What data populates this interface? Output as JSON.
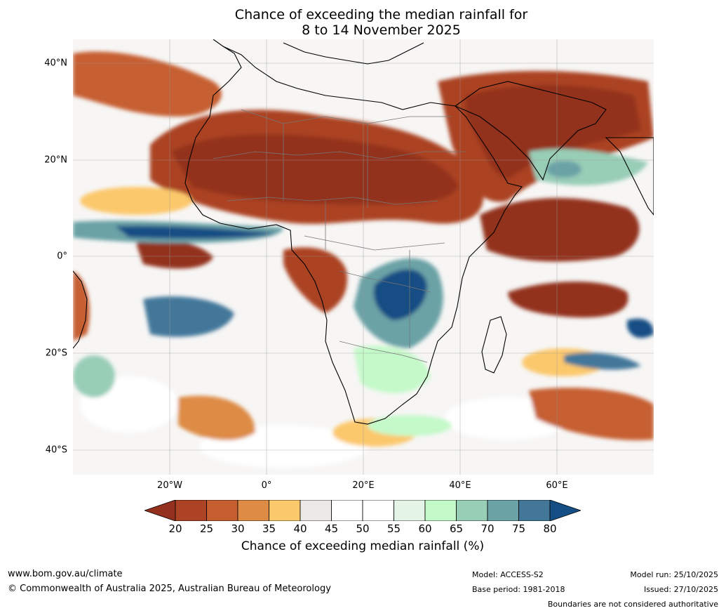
{
  "title": {
    "line1": "Chance of exceeding the median rainfall for",
    "line2": "8 to 14 November 2025"
  },
  "lat_labels": [
    "40°N",
    "20°N",
    "0°",
    "20°S",
    "40°S"
  ],
  "lon_labels": [
    "20°W",
    "0°",
    "20°E",
    "40°E",
    "60°E"
  ],
  "colorbar": {
    "ticks": [
      "20",
      "25",
      "30",
      "35",
      "40",
      "45",
      "50",
      "55",
      "60",
      "65",
      "70",
      "75",
      "80"
    ],
    "title": "Chance of exceeding median rainfall (%)",
    "colors": {
      "below_20": "#93301e",
      "20_25": "#ab4324",
      "25_30": "#c65e30",
      "30_35": "#dd8b45",
      "35_40": "#fcc86c",
      "40_45": "#ece9e6",
      "45_50": "#ffffff",
      "50_55": "#ffffff",
      "55_60": "#e4f4e6",
      "60_65": "#c4f9c9",
      "65_70": "#98cdb6",
      "70_75": "#6aa2a6",
      "75_80": "#42779a",
      "above_80": "#144e84"
    }
  },
  "footer": {
    "website": "www.bom.gov.au/climate",
    "copyright": "© Commonwealth of Australia 2025, Australian Bureau of Meteorology",
    "model": "Model: ACCESS-S2",
    "base_period": "Base period: 1981-2018",
    "model_run": "Model run: 25/10/2025",
    "issued": "Issued: 27/10/2025",
    "disclaimer": "Boundaries are not considered authoritative"
  }
}
